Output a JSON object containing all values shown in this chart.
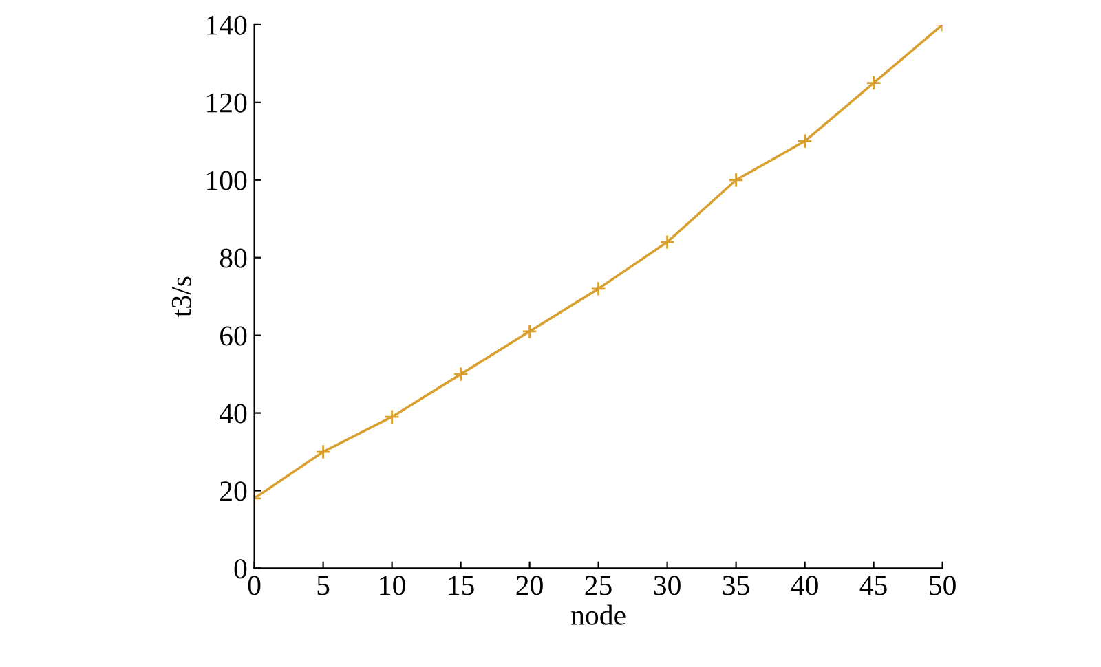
{
  "chart_data": {
    "type": "line",
    "xlabel": "node",
    "ylabel": "t3/s",
    "x": [
      0,
      5,
      10,
      15,
      20,
      25,
      30,
      35,
      40,
      45,
      50
    ],
    "series": [
      {
        "color": "#d9a030",
        "values": [
          18,
          30,
          39,
          50,
          61,
          72,
          84,
          100,
          110,
          125,
          140
        ]
      }
    ],
    "xlim": [
      0,
      50
    ],
    "xticks": [
      0,
      5,
      10,
      15,
      20,
      25,
      30,
      35,
      40,
      45,
      50
    ],
    "ylim": [
      0,
      140
    ],
    "yticks": [
      0,
      20,
      40,
      60,
      80,
      100,
      120,
      140
    ],
    "grid": false,
    "legend": false,
    "marker": "cross",
    "line_style": "solid"
  }
}
